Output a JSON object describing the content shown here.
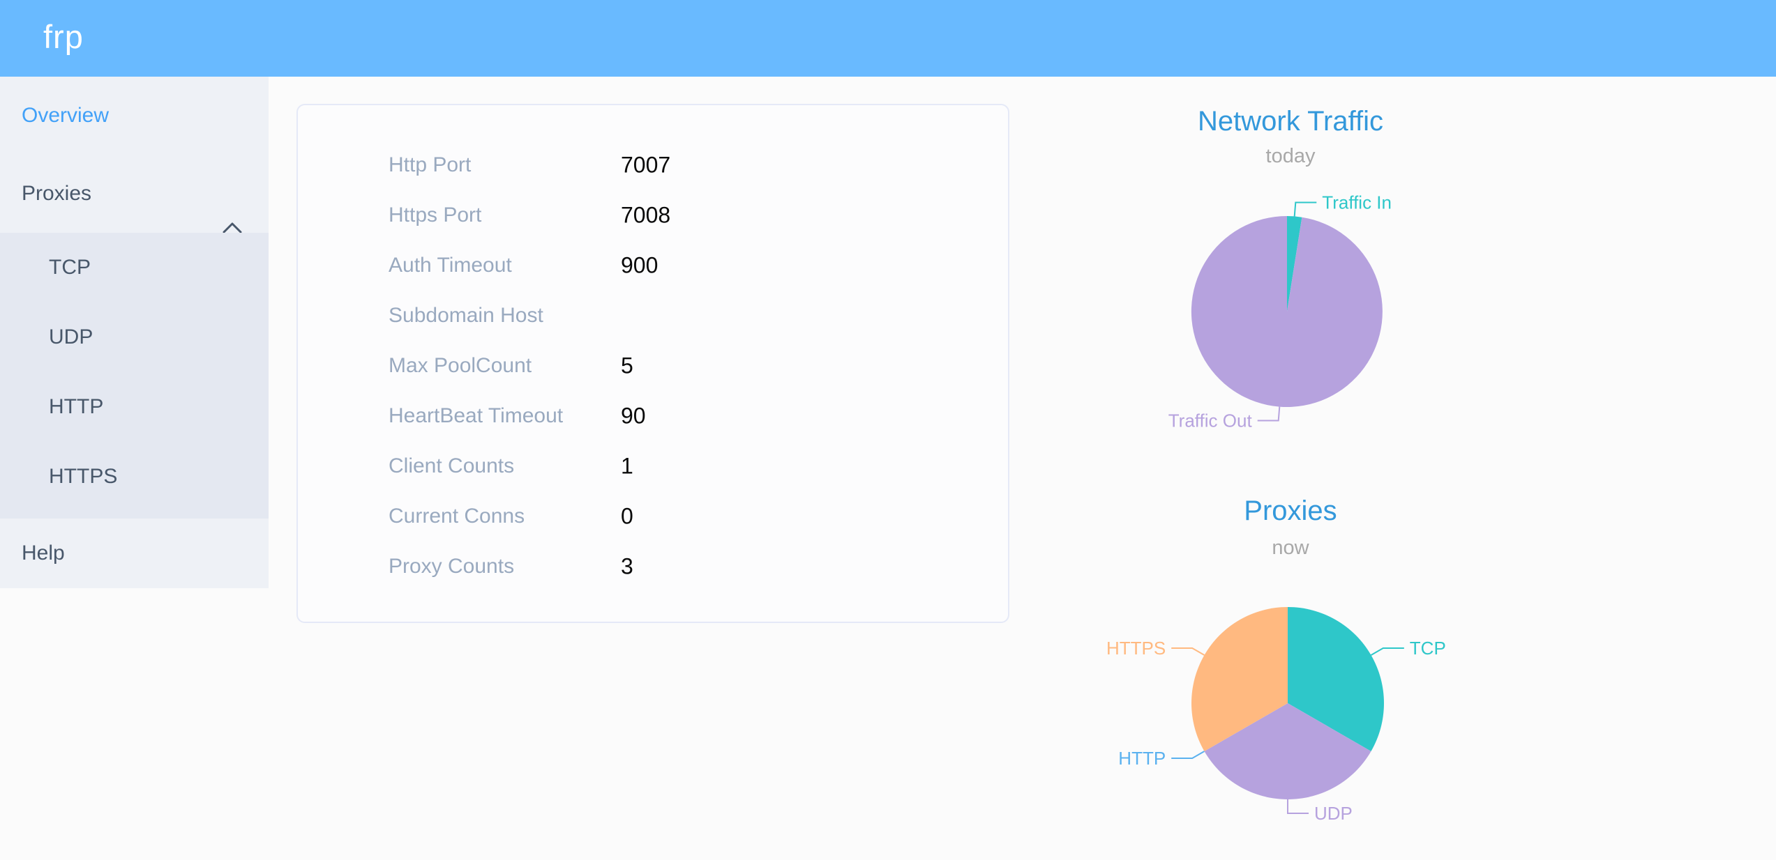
{
  "colors": {
    "header_bg": "#69baff",
    "page_bg": "#fbfbfb",
    "sidebar_bg": "#eef1f6",
    "submenu_bg": "#e4e8f1",
    "sidebar_text": "#48576a",
    "sidebar_active_text": "#42a1f8",
    "chart_title_blue": "#3398db",
    "chart_subtitle_gray": "#a8a8a8",
    "config_label_gray": "#99a9bf",
    "config_value_black": "#0a0a0a",
    "card_border": "#e5e9f7",
    "pie_teal": "#2ec7c9",
    "pie_purple": "#b6a2de",
    "pie_blue": "#5ab1ef",
    "pie_orange": "#ffb980"
  },
  "header": {
    "logo": "frp"
  },
  "sidebar": {
    "overview_label": "Overview",
    "proxies_label": "Proxies",
    "proxies_expanded": true,
    "submenu_items": [
      "TCP",
      "UDP",
      "HTTP",
      "HTTPS"
    ],
    "help_label": "Help",
    "active_item": "Overview"
  },
  "config_table": {
    "rows": [
      {
        "label": "Http Port",
        "value": "7007"
      },
      {
        "label": "Https Port",
        "value": "7008"
      },
      {
        "label": "Auth Timeout",
        "value": "900"
      },
      {
        "label": "Subdomain Host",
        "value": ""
      },
      {
        "label": "Max PoolCount",
        "value": "5"
      },
      {
        "label": "HeartBeat Timeout",
        "value": "90"
      },
      {
        "label": "Client Counts",
        "value": "1"
      },
      {
        "label": "Current Conns",
        "value": "0"
      },
      {
        "label": "Proxy Counts",
        "value": "3"
      }
    ]
  },
  "chart_data": [
    {
      "type": "pie",
      "title": "Network Traffic",
      "subtitle": "today",
      "legend_position": "callout-labels",
      "start_angle_deg": 0,
      "slices": [
        {
          "label": "Traffic In",
          "pct": 2.5,
          "color": "#2ec7c9"
        },
        {
          "label": "Traffic Out",
          "pct": 97.5,
          "color": "#b6a2de"
        }
      ]
    },
    {
      "type": "pie",
      "title": "Proxies",
      "subtitle": "now",
      "legend_position": "callout-labels",
      "start_angle_deg": 0,
      "slices": [
        {
          "label": "TCP",
          "value": 1,
          "pct": 33.33,
          "color": "#2ec7c9"
        },
        {
          "label": "UDP",
          "value": 1,
          "pct": 33.33,
          "color": "#b6a2de"
        },
        {
          "label": "HTTP",
          "value": 0,
          "pct": 0,
          "color": "#5ab1ef"
        },
        {
          "label": "HTTPS",
          "value": 1,
          "pct": 33.33,
          "color": "#ffb980"
        }
      ]
    }
  ]
}
